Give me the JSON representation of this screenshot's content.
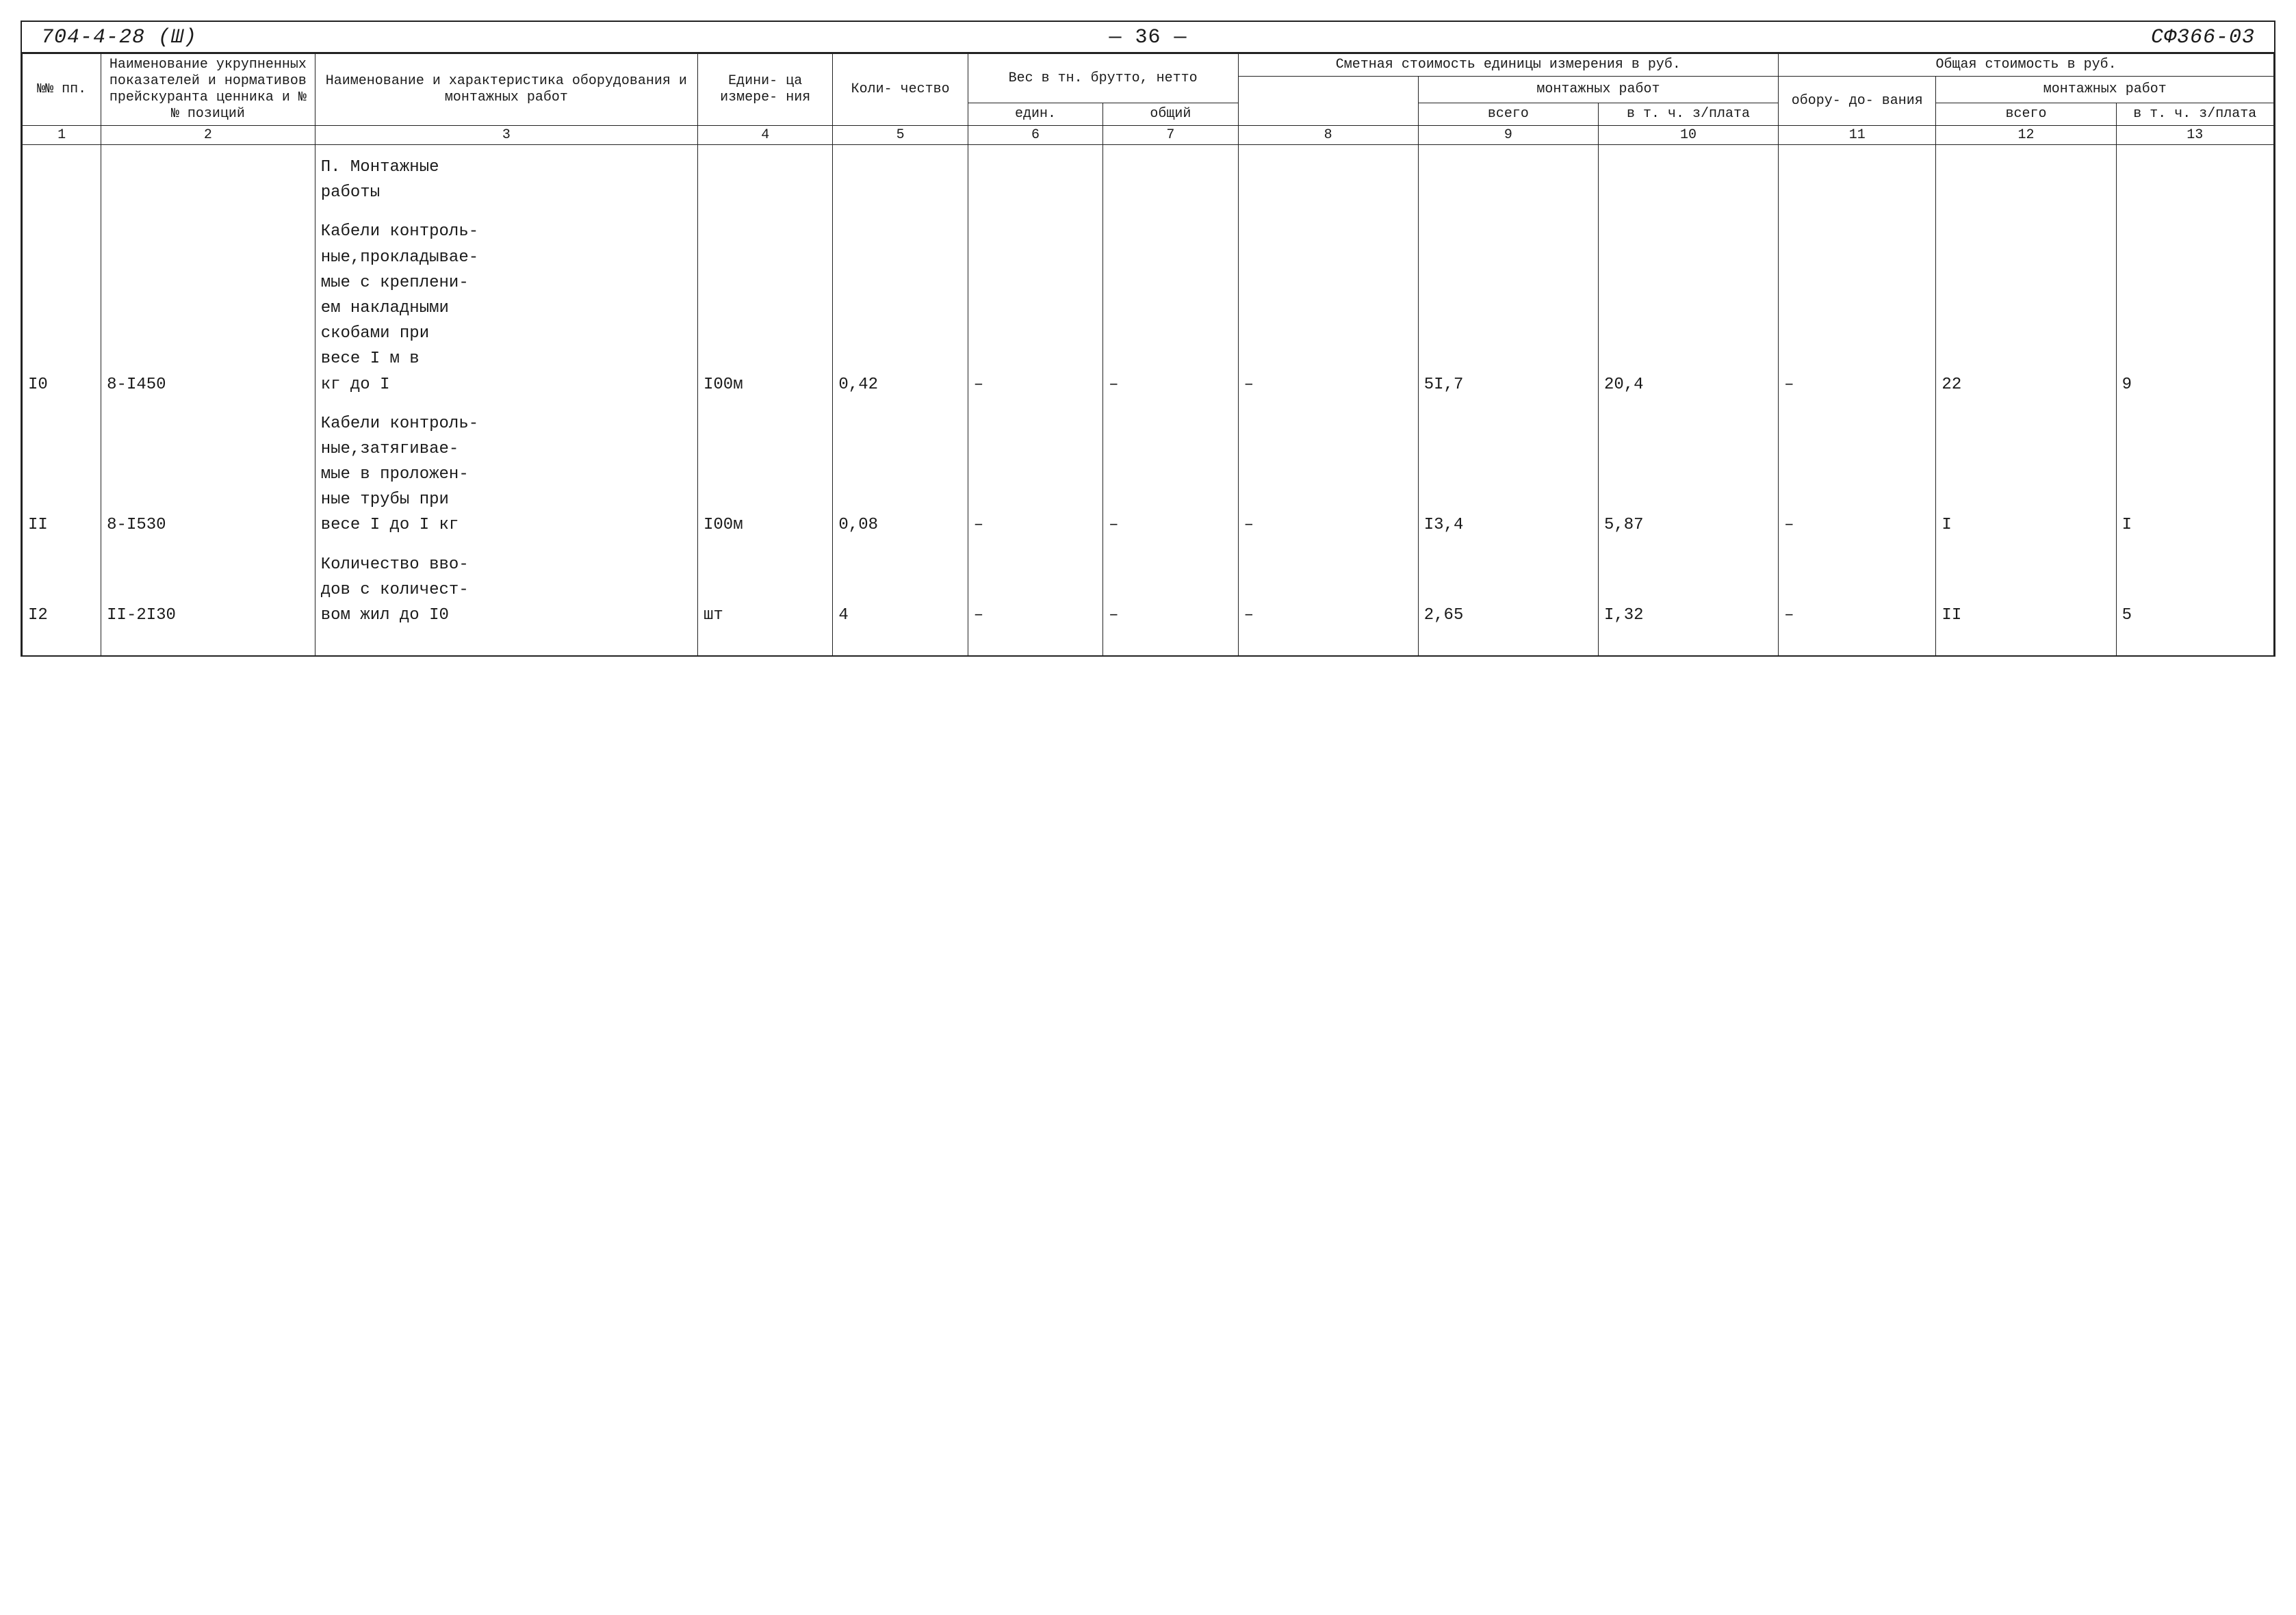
{
  "title": {
    "left": "704-4-28   (Ш)",
    "mid": "— 36 —",
    "right": "СФ366-03"
  },
  "columns": {
    "widths_pct": [
      3.5,
      9.5,
      17,
      6,
      6,
      6,
      6,
      8,
      8,
      8,
      7,
      8,
      7
    ],
    "numbers": [
      "1",
      "2",
      "3",
      "4",
      "5",
      "6",
      "7",
      "8",
      "9",
      "10",
      "11",
      "12",
      "13"
    ]
  },
  "header": {
    "c1": "№№\nпп.",
    "c2": "Наименование укрупненных показателей и нормативов прейскуранта ценника и №№ позиций",
    "c3": "Наименование и характеристика оборудования и монтажных работ",
    "c4": "Едини-\nца\nизмере-\nния",
    "c5": "Коли-\nчество",
    "weight_group": "Вес в тн.\nбрутто, нетто",
    "c6": "един.",
    "c7": "общий",
    "smeta_group": "Сметная стоимость\nединицы измерения  в  руб.",
    "c8": "",
    "mont_sub": "монтажных работ",
    "c9": "всего",
    "c10": "в т. ч.\nз/плата",
    "total_group": "Общая стоимость в  руб.",
    "c11": "обору-\nдо-\nвания",
    "mont_sub2": "монтажных работ",
    "c12": "всего",
    "c13": "в т. ч.\nз/плата"
  },
  "section_title": "П. Монтажные\nработы",
  "rows": [
    {
      "n": "I0",
      "code": "8-I450",
      "desc": "Кабели контроль-\nные,прокладывае-\nмые с креплени-\nем накладными\nскобами при\nвесе I м в\nкг до I",
      "unit": "I00м",
      "qty": "0,42",
      "w_unit": "–",
      "w_total": "–",
      "c8": "–",
      "c9": "5I,7",
      "c10": "20,4",
      "c11": "–",
      "c12": "22",
      "c13": "9"
    },
    {
      "n": "II",
      "code": "8-I530",
      "desc": "Кабели контроль-\nные,затягивае-\nмые в проложен-\nные трубы при\nвесе I до I кг",
      "unit": "I00м",
      "qty": "0,08",
      "w_unit": "–",
      "w_total": "–",
      "c8": "–",
      "c9": "I3,4",
      "c10": "5,87",
      "c11": "–",
      "c12": "I",
      "c13": "I"
    },
    {
      "n": "I2",
      "code": "II-2I30",
      "desc": "Количество вво-\nдов с количест-\nвом жил до I0",
      "unit": "шт",
      "qty": "4",
      "w_unit": "–",
      "w_total": "–",
      "c8": "–",
      "c9": "2,65",
      "c10": "I,32",
      "c11": "–",
      "c12": "II",
      "c13": "5"
    }
  ],
  "style": {
    "font_family": "Courier New",
    "text_color": "#1a1a1a",
    "border_color": "#222222",
    "background": "#ffffff",
    "title_fontsize_pt": 22,
    "header_fontsize_pt": 15,
    "body_fontsize_pt": 18,
    "line_height": 1.55
  }
}
